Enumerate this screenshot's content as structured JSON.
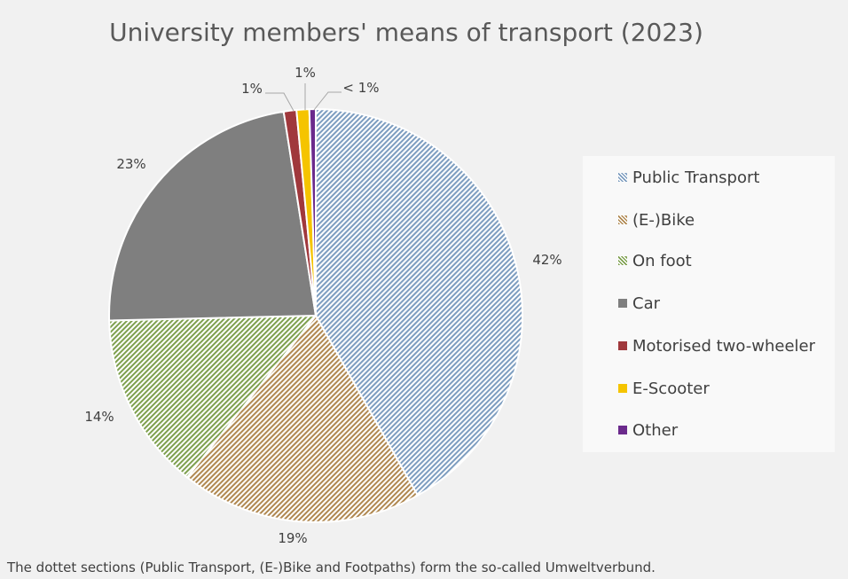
{
  "title": "University members' means of transport (2023)",
  "footnote": "The dottet sections (Public Transport, (E-)Bike and Footpaths) form the so-called Umweltverbund.",
  "chart_data": {
    "type": "pie",
    "title": "University members' means of transport (2023)",
    "legend_position": "right",
    "slices": [
      {
        "name": "Public Transport",
        "value": 42,
        "label": "42%",
        "color": "#7d9dc0",
        "pattern": "hatched"
      },
      {
        "name": "(E-)Bike",
        "value": 19,
        "label": "19%",
        "color": "#b08850",
        "pattern": "hatched"
      },
      {
        "name": "On foot",
        "value": 14,
        "label": "14%",
        "color": "#7ea04e",
        "pattern": "hatched"
      },
      {
        "name": "Car",
        "value": 23,
        "label": "23%",
        "color": "#7f7f7f",
        "pattern": "solid"
      },
      {
        "name": "Motorised two-wheeler",
        "value": 1,
        "label": "1%",
        "color": "#a0383c",
        "pattern": "solid"
      },
      {
        "name": "E-Scooter",
        "value": 1,
        "label": "1%",
        "color": "#f5c400",
        "pattern": "solid"
      },
      {
        "name": "Other",
        "value": 0.5,
        "label": "< 1%",
        "color": "#6b2a8c",
        "pattern": "solid"
      }
    ]
  }
}
